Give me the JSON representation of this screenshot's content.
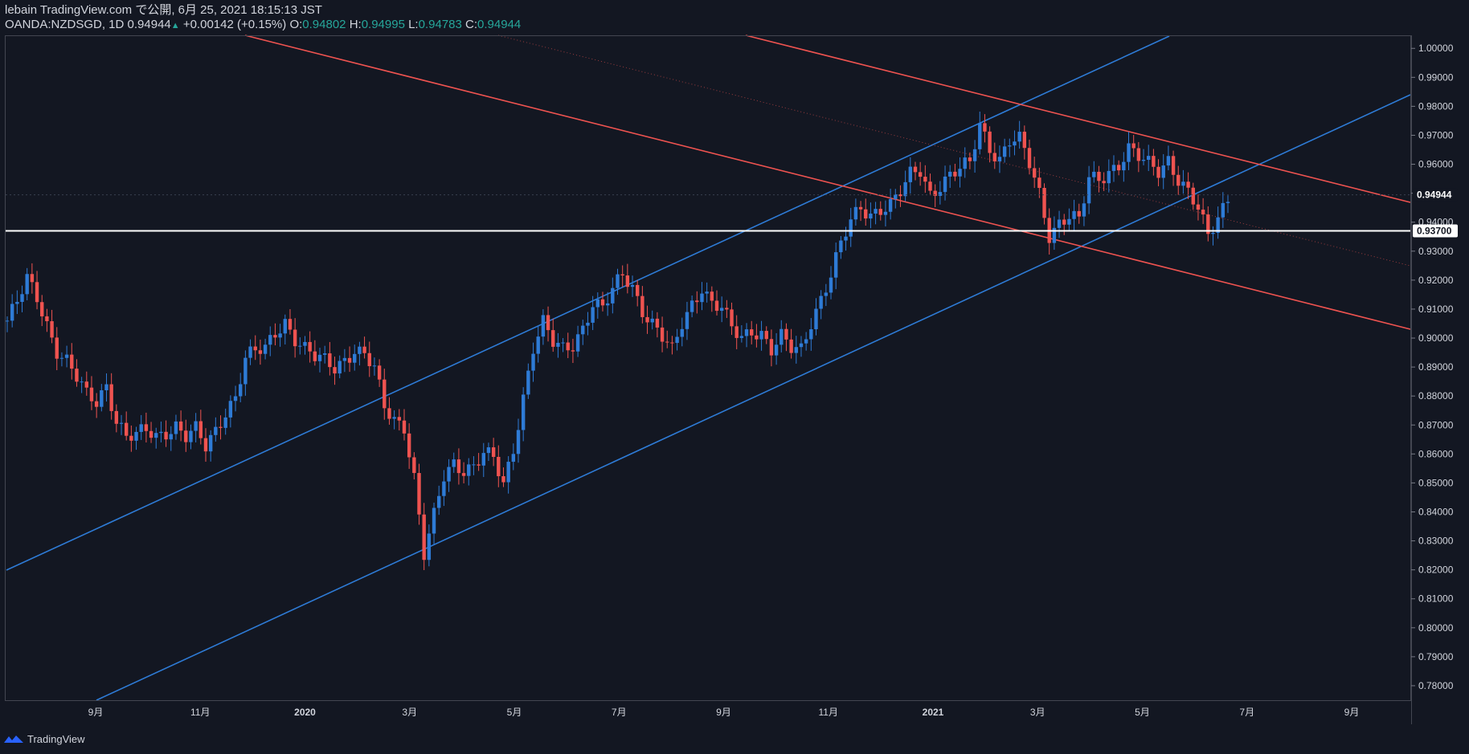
{
  "header": {
    "publish_line": "lebain TradingView.com で公開, 6月 25, 2021 18:15:13 JST",
    "symbol": "OANDA:NZDSGD, 1D",
    "last": "0.94944",
    "change": "+0.00142 (+0.15%)",
    "o_label": "O:",
    "o_value": "0.94802",
    "h_label": "H:",
    "h_value": "0.94995",
    "l_label": "L:",
    "l_value": "0.94783",
    "c_label": "C:",
    "c_value": "0.94944"
  },
  "footer": {
    "brand": "TradingView"
  },
  "colors": {
    "background": "#131722",
    "up": "#2e7bd6",
    "down": "#ef5350",
    "channel_up": "#2e7bd6",
    "channel_down": "#ef5350",
    "support": "#ffffff",
    "axis": "#787b86"
  },
  "chart_data": {
    "type": "candlestick",
    "symbol": "OANDA:NZDSGD",
    "timeframe": "1D",
    "ylim": [
      0.775,
      1.0045
    ],
    "y_ticks": [
      "1.00000",
      "0.99000",
      "0.98000",
      "0.97000",
      "0.96000",
      "0.95000",
      "0.94000",
      "0.93000",
      "0.92000",
      "0.91000",
      "0.90000",
      "0.89000",
      "0.88000",
      "0.87000",
      "0.86000",
      "0.85000",
      "0.84000",
      "0.83000",
      "0.82000",
      "0.81000",
      "0.80000",
      "0.79000",
      "0.78000"
    ],
    "x_ticks": [
      {
        "label": "9月",
        "bold": false
      },
      {
        "label": "11月",
        "bold": false
      },
      {
        "label": "2020",
        "bold": true
      },
      {
        "label": "3月",
        "bold": false
      },
      {
        "label": "5月",
        "bold": false
      },
      {
        "label": "7月",
        "bold": false
      },
      {
        "label": "9月",
        "bold": false
      },
      {
        "label": "11月",
        "bold": false
      },
      {
        "label": "2021",
        "bold": true
      },
      {
        "label": "3月",
        "bold": false
      },
      {
        "label": "5月",
        "bold": false
      },
      {
        "label": "7月",
        "bold": false
      },
      {
        "label": "9月",
        "bold": false
      }
    ],
    "price_path": [
      [
        0,
        0.906
      ],
      [
        2,
        0.912
      ],
      [
        4,
        0.92
      ],
      [
        6,
        0.914
      ],
      [
        8,
        0.905
      ],
      [
        10,
        0.896
      ],
      [
        12,
        0.892
      ],
      [
        14,
        0.886
      ],
      [
        16,
        0.88
      ],
      [
        18,
        0.878
      ],
      [
        20,
        0.884
      ],
      [
        22,
        0.872
      ],
      [
        24,
        0.866
      ],
      [
        26,
        0.866
      ],
      [
        28,
        0.868
      ],
      [
        30,
        0.866
      ],
      [
        32,
        0.868
      ],
      [
        34,
        0.87
      ],
      [
        36,
        0.866
      ],
      [
        38,
        0.868
      ],
      [
        40,
        0.862
      ],
      [
        42,
        0.868
      ],
      [
        44,
        0.875
      ],
      [
        46,
        0.88
      ],
      [
        48,
        0.893
      ],
      [
        50,
        0.895
      ],
      [
        52,
        0.896
      ],
      [
        54,
        0.902
      ],
      [
        56,
        0.906
      ],
      [
        58,
        0.9
      ],
      [
        60,
        0.896
      ],
      [
        62,
        0.893
      ],
      [
        64,
        0.892
      ],
      [
        66,
        0.89
      ],
      [
        68,
        0.893
      ],
      [
        70,
        0.896
      ],
      [
        72,
        0.894
      ],
      [
        74,
        0.889
      ],
      [
        76,
        0.876
      ],
      [
        78,
        0.872
      ],
      [
        80,
        0.87
      ],
      [
        82,
        0.852
      ],
      [
        84,
        0.825
      ],
      [
        86,
        0.838
      ],
      [
        88,
        0.852
      ],
      [
        90,
        0.857
      ],
      [
        92,
        0.855
      ],
      [
        94,
        0.856
      ],
      [
        96,
        0.86
      ],
      [
        98,
        0.858
      ],
      [
        100,
        0.849
      ],
      [
        102,
        0.862
      ],
      [
        104,
        0.88
      ],
      [
        106,
        0.897
      ],
      [
        108,
        0.905
      ],
      [
        110,
        0.898
      ],
      [
        112,
        0.896
      ],
      [
        114,
        0.898
      ],
      [
        116,
        0.904
      ],
      [
        118,
        0.912
      ],
      [
        120,
        0.91
      ],
      [
        122,
        0.916
      ],
      [
        124,
        0.922
      ],
      [
        126,
        0.918
      ],
      [
        128,
        0.91
      ],
      [
        130,
        0.905
      ],
      [
        132,
        0.9
      ],
      [
        134,
        0.895
      ],
      [
        136,
        0.905
      ],
      [
        138,
        0.912
      ],
      [
        140,
        0.918
      ],
      [
        142,
        0.912
      ],
      [
        144,
        0.91
      ],
      [
        146,
        0.903
      ],
      [
        148,
        0.9
      ],
      [
        150,
        0.903
      ],
      [
        152,
        0.902
      ],
      [
        154,
        0.896
      ],
      [
        156,
        0.9
      ],
      [
        158,
        0.896
      ],
      [
        160,
        0.896
      ],
      [
        162,
        0.906
      ],
      [
        164,
        0.914
      ],
      [
        166,
        0.922
      ],
      [
        168,
        0.932
      ],
      [
        170,
        0.94
      ],
      [
        172,
        0.945
      ],
      [
        174,
        0.943
      ],
      [
        176,
        0.945
      ],
      [
        178,
        0.946
      ],
      [
        180,
        0.95
      ],
      [
        182,
        0.956
      ],
      [
        184,
        0.958
      ],
      [
        186,
        0.95
      ],
      [
        188,
        0.953
      ],
      [
        190,
        0.956
      ],
      [
        192,
        0.958
      ],
      [
        194,
        0.96
      ],
      [
        196,
        0.974
      ],
      [
        198,
        0.966
      ],
      [
        200,
        0.962
      ],
      [
        202,
        0.968
      ],
      [
        204,
        0.968
      ],
      [
        206,
        0.96
      ],
      [
        208,
        0.95
      ],
      [
        210,
        0.936
      ],
      [
        212,
        0.94
      ],
      [
        214,
        0.942
      ],
      [
        216,
        0.94
      ],
      [
        218,
        0.955
      ],
      [
        220,
        0.955
      ],
      [
        222,
        0.958
      ],
      [
        224,
        0.96
      ],
      [
        226,
        0.965
      ],
      [
        228,
        0.962
      ],
      [
        230,
        0.96
      ],
      [
        232,
        0.958
      ],
      [
        234,
        0.962
      ],
      [
        236,
        0.955
      ],
      [
        238,
        0.95
      ],
      [
        240,
        0.944
      ],
      [
        242,
        0.935
      ],
      [
        244,
        0.942
      ],
      [
        246,
        0.949
      ]
    ],
    "annotations": [
      {
        "type": "horizontal_line",
        "price": 0.937,
        "label": "0.93700",
        "color": "#ffffff"
      },
      {
        "type": "price_label",
        "price": 0.94944,
        "label": "0.94944"
      },
      {
        "type": "ascending_channel",
        "color": "#2e7bd6"
      },
      {
        "type": "descending_channel",
        "color": "#ef5350"
      }
    ]
  }
}
